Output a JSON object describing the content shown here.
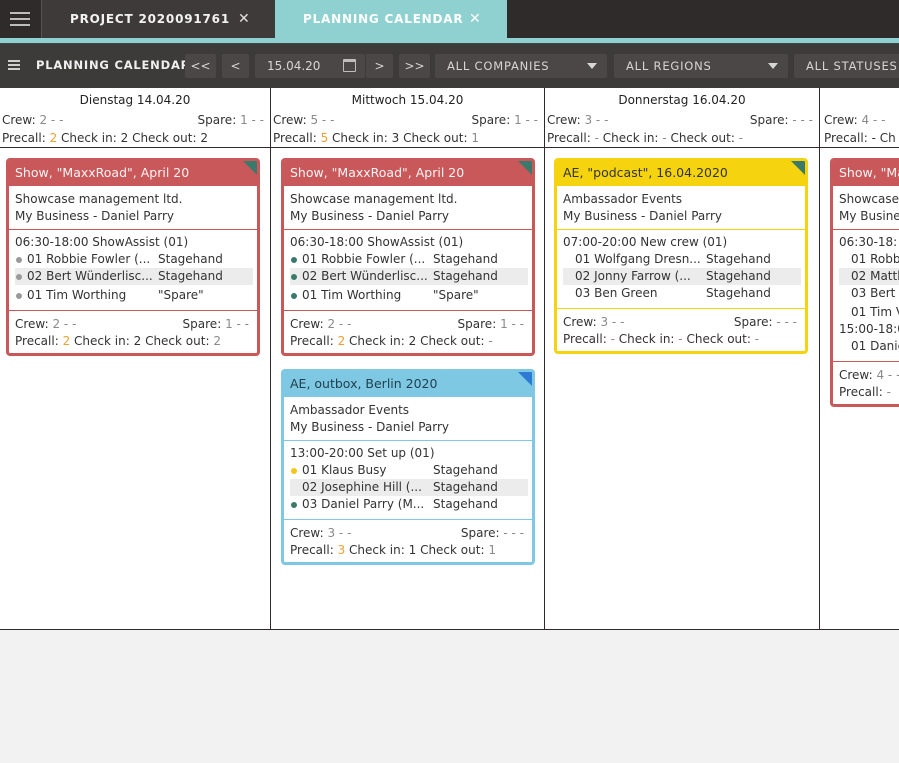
{
  "tabs": [
    {
      "label": "PROJECT 2020091761",
      "close": "✕"
    },
    {
      "label": "PLANNING CALENDAR",
      "close": "✕"
    }
  ],
  "toolbar": {
    "title": "PLANNING CALENDAR",
    "first": "<<",
    "prev": "<",
    "date": "15.04.20",
    "next": ">",
    "last": ">>",
    "companies": "ALL COMPANIES",
    "regions": "ALL REGIONS",
    "statuses": "ALL STATUSES"
  },
  "columns": [
    {
      "date": "Dienstag 14.04.20",
      "crew_label": "Crew:",
      "crew": "2 - -",
      "spare_label": "Spare:",
      "spare": "1 - -",
      "precall_label": "Precall:",
      "precall": "2",
      "checkin_label": "Check in:",
      "checkin": "2",
      "checkout_label": "Check out:",
      "checkout": "2"
    },
    {
      "date": "Mittwoch 15.04.20",
      "crew_label": "Crew:",
      "crew": "5 - -",
      "spare_label": "Spare:",
      "spare": "1 - -",
      "precall_label": "Precall:",
      "precall": "5",
      "checkin_label": "Check in:",
      "checkin": "3",
      "checkout_label": "Check out:",
      "checkout": "1"
    },
    {
      "date": "Donnerstag 16.04.20",
      "crew_label": "Crew:",
      "crew": "3 - -",
      "spare_label": "Spare:",
      "spare": "- - -",
      "precall_label": "Precall:",
      "precall": "-",
      "checkin_label": "Check in:",
      "checkin": "-",
      "checkout_label": "Check out:",
      "checkout": "-"
    },
    {
      "date": "",
      "crew_label": "Crew:",
      "crew": "4 - -",
      "precall_label": "Precall:",
      "precall": "- Ch"
    }
  ],
  "cards": {
    "c1": {
      "title": "Show, \"MaxxRoad\", April 20",
      "company": "Showcase management ltd.",
      "owner": "My Business - Daniel Parry",
      "shift": "06:30-18:00 ShowAssist (01)",
      "people": [
        {
          "name": "01 Robbie Fowler (...",
          "role": "Stagehand"
        },
        {
          "name": "02 Bert Wünderlisc...",
          "role": "Stagehand"
        },
        {
          "name": "01 Tim Worthing",
          "role": "\"Spare\""
        }
      ],
      "crew": "2 - -",
      "spare": "1 - -",
      "precall": "2",
      "checkin": "2",
      "checkout": "2"
    },
    "c2": {
      "title": "Show, \"MaxxRoad\", April 20",
      "company": "Showcase management ltd.",
      "owner": "My Business - Daniel Parry",
      "shift": "06:30-18:00 ShowAssist (01)",
      "people": [
        {
          "name": "01 Robbie Fowler (...",
          "role": "Stagehand"
        },
        {
          "name": "02 Bert Wünderlisc...",
          "role": "Stagehand"
        },
        {
          "name": "01 Tim Worthing",
          "role": "\"Spare\""
        }
      ],
      "crew": "2 - -",
      "spare": "1 - -",
      "precall": "2",
      "checkin": "2",
      "checkout": "-"
    },
    "c3": {
      "title": "AE, outbox, Berlin 2020",
      "company": "Ambassador Events",
      "owner": "My Business - Daniel Parry",
      "shift": "13:00-20:00 Set up (01)",
      "people": [
        {
          "name": "01 Klaus Busy",
          "role": "Stagehand"
        },
        {
          "name": "02 Josephine Hill (...",
          "role": "Stagehand"
        },
        {
          "name": "03 Daniel Parry (M...",
          "role": "Stagehand"
        }
      ],
      "crew": "3 - -",
      "spare": "- - -",
      "precall": "3",
      "checkin": "1",
      "checkout": "1"
    },
    "c4": {
      "title": "AE, \"podcast\", 16.04.2020",
      "company": "Ambassador Events",
      "owner": "My Business - Daniel Parry",
      "shift": "07:00-20:00 New crew (01)",
      "people": [
        {
          "name": "01 Wolfgang Dresn...",
          "role": "Stagehand"
        },
        {
          "name": "02 Jonny Farrow (...",
          "role": "Stagehand"
        },
        {
          "name": "03 Ben Green",
          "role": "Stagehand"
        }
      ],
      "crew": "3 - -",
      "spare": "- - -",
      "precall": "-",
      "checkin": "-",
      "checkout": "-"
    },
    "c5": {
      "title": "Show, \"Ma",
      "company": "Showcase",
      "owner": "My Busine",
      "shift": "06:30-18:",
      "people": [
        {
          "name": "01 Robb"
        },
        {
          "name": "02 Matth"
        },
        {
          "name": "03 Bert"
        },
        {
          "name": "01 Tim V"
        }
      ],
      "shift2": "15:00-18:0",
      "people2": [
        {
          "name": "01 Danie"
        }
      ],
      "crew": "4 - -",
      "precall": "-"
    }
  },
  "labels": {
    "crew": "Crew:",
    "spare": "Spare:",
    "precall": "Precall:",
    "checkin": "Check in:",
    "checkout": "Check out:"
  },
  "colors": {
    "red": "#c9585a",
    "yellow": "#f5d40f",
    "blue": "#7ec8e3",
    "teal": "#8fd1d1",
    "orange": "#f0a030"
  }
}
